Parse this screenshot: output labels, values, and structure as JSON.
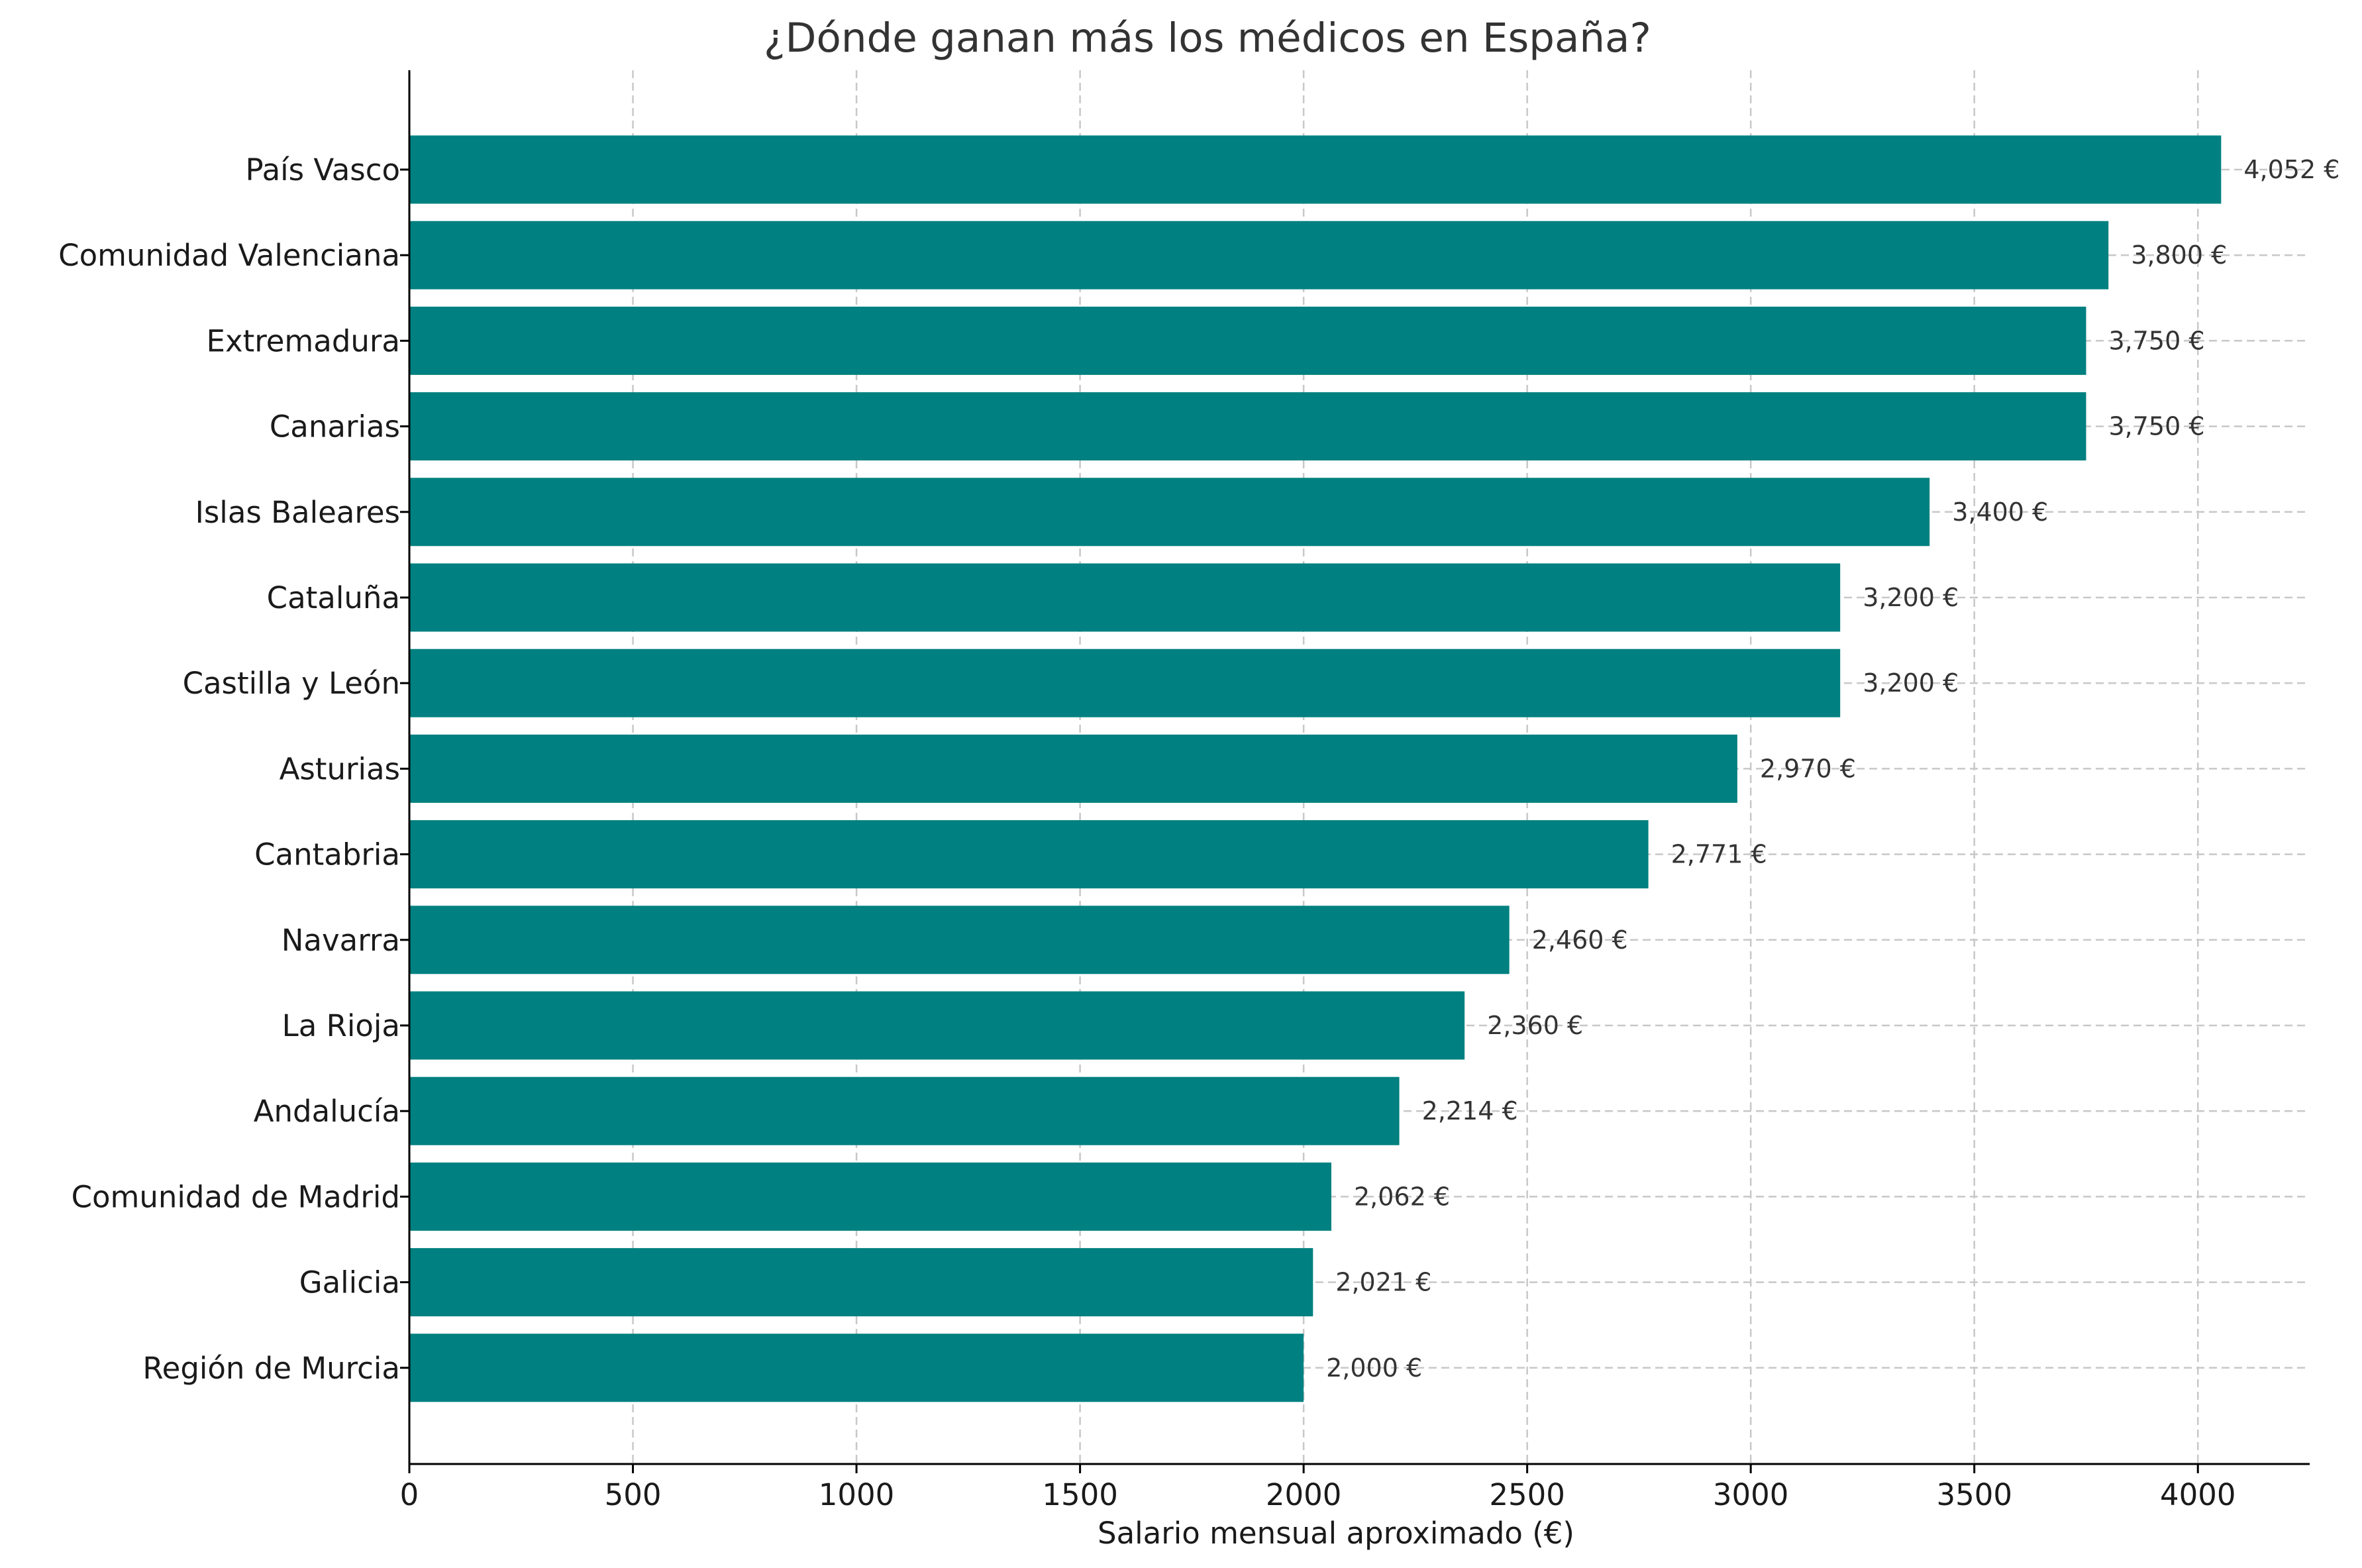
{
  "chart_data": {
    "type": "bar",
    "orientation": "horizontal",
    "title": "¿Dónde ganan más los médicos en España?",
    "xlabel": "Salario mensual aproximado (€)",
    "ylabel": "",
    "xlim": [
      0,
      4250
    ],
    "xticks": [
      0,
      500,
      1000,
      1500,
      2000,
      2500,
      3000,
      3500,
      4000
    ],
    "grid": true,
    "color": "#008080",
    "categories": [
      "País Vasco",
      "Comunidad Valenciana",
      "Extremadura",
      "Canarias",
      "Islas Baleares",
      "Cataluña",
      "Castilla y León",
      "Asturias",
      "Cantabria",
      "Navarra",
      "La Rioja",
      "Andalucía",
      "Comunidad de Madrid",
      "Galicia",
      "Región de Murcia"
    ],
    "values": [
      4052,
      3800,
      3750,
      3750,
      3400,
      3200,
      3200,
      2970,
      2771,
      2460,
      2360,
      2214,
      2062,
      2021,
      2000
    ],
    "value_labels": [
      "4,052 €",
      "3,800 €",
      "3,750 €",
      "3,750 €",
      "3,400 €",
      "3,200 €",
      "3,200 €",
      "2,970 €",
      "2,771 €",
      "2,460 €",
      "2,360 €",
      "2,214 €",
      "2,062 €",
      "2,021 €",
      "2,000 €"
    ]
  }
}
